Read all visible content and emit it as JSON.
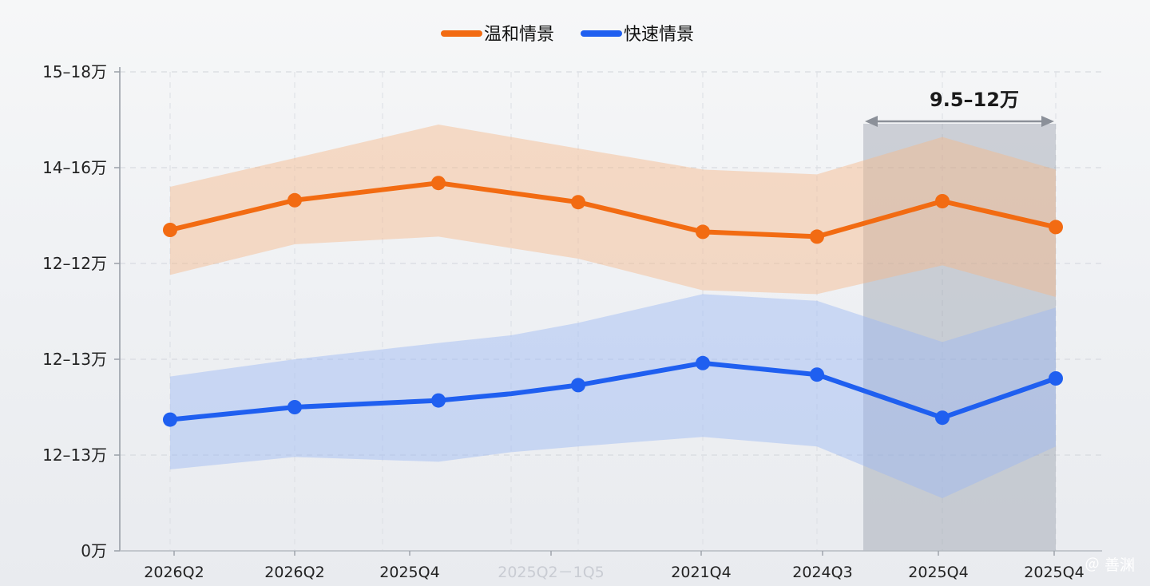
{
  "chart_data": {
    "type": "line",
    "categories": [
      "2026Q2",
      "2026Q2",
      "2025Q4",
      "2025Q2－1Q5",
      "",
      "2021Q4",
      "2024Q3",
      "2025Q4",
      "2025Q4"
    ],
    "y_ticks": [
      "0万",
      "12–13万",
      "12–13万",
      "12–12万",
      "14–16万",
      "15–18万"
    ],
    "ylim": [
      0,
      5
    ],
    "grid": true,
    "legend_position": "top-center",
    "series": [
      {
        "name": "温和情景",
        "color": "#f26b12",
        "band_color": "#f7b989",
        "x": [
          0,
          1,
          2,
          3,
          3.7,
          4.4,
          5.4,
          6.4,
          7.2
        ],
        "values": [
          3.35,
          3.66,
          3.84,
          null,
          3.64,
          3.33,
          3.28,
          3.65,
          3.38
        ],
        "upper": [
          3.8,
          4.1,
          4.45,
          null,
          4.2,
          3.98,
          3.93,
          4.32,
          3.98
        ],
        "lower": [
          2.88,
          3.2,
          3.28,
          null,
          3.05,
          2.72,
          2.68,
          2.98,
          2.65
        ]
      },
      {
        "name": "快速情景",
        "color": "#1f5ff0",
        "band_color": "#9bb8f5",
        "x": [
          0,
          1,
          2,
          3,
          3.7,
          4.4,
          5.4,
          6.4,
          7.2
        ],
        "values": [
          1.37,
          1.5,
          1.57,
          1.64,
          1.73,
          1.96,
          1.84,
          1.39,
          1.8
        ],
        "upper": [
          1.82,
          2.0,
          2.17,
          2.25,
          2.38,
          2.68,
          2.61,
          2.18,
          2.54
        ],
        "lower": [
          0.85,
          0.98,
          0.93,
          1.03,
          1.09,
          1.19,
          1.09,
          0.55,
          1.09
        ]
      }
    ],
    "annotation": {
      "label": "9.5–12万",
      "x_from": 6.9,
      "x_to": 7.2
    }
  },
  "watermark": "＠ 善渊",
  "legend": {
    "items": [
      {
        "name": "温和情景",
        "color": "#f26b12"
      },
      {
        "name": "快速情景",
        "color": "#1f5ff0"
      }
    ]
  }
}
